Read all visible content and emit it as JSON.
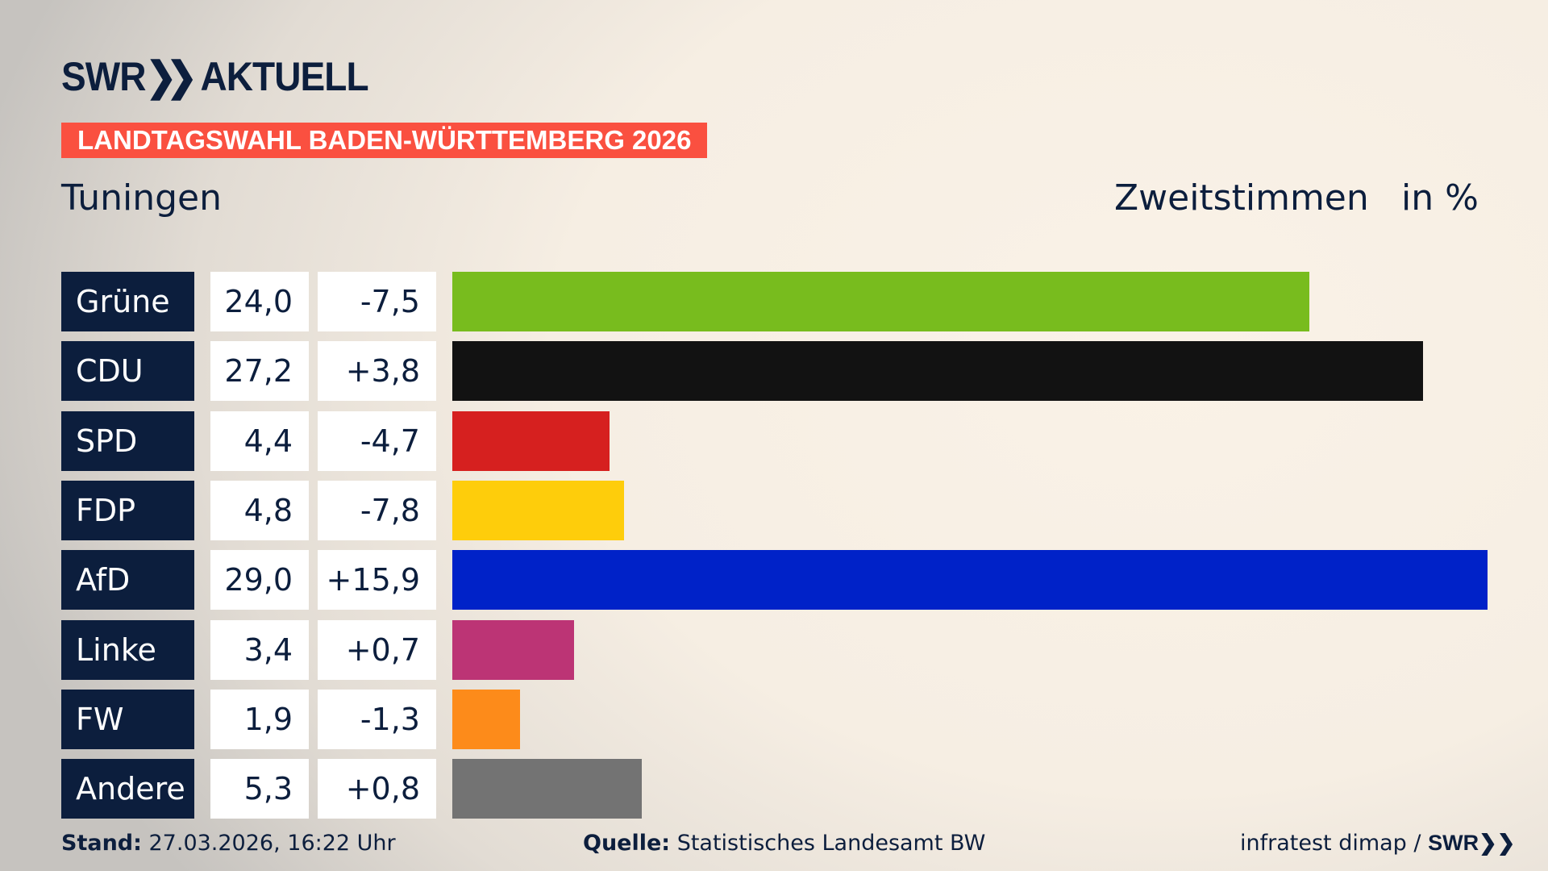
{
  "header": {
    "logo": "SWR AKTUELL",
    "logo_arrows": "❯❯",
    "logo_word": "AKTUELL",
    "logo_swr": "SWR",
    "banner": "LANDTAGSWAHL BADEN-WÜRTTEMBERG 2026",
    "banner_color": "#fa5040",
    "place": "Tuningen",
    "measure": "Zweitstimmen",
    "unit": "in %"
  },
  "chart_data": {
    "type": "bar",
    "orientation": "horizontal",
    "xlim": [
      0,
      29.0
    ],
    "grid": false,
    "categories": [
      "Grüne",
      "CDU",
      "SPD",
      "FDP",
      "AfD",
      "Linke",
      "FW",
      "Andere"
    ],
    "values": [
      24.0,
      27.2,
      4.4,
      4.8,
      29.0,
      3.4,
      1.9,
      5.3
    ],
    "value_labels": [
      "24,0",
      "27,2",
      "4,4",
      "4,8",
      "29,0",
      "3,4",
      "1,9",
      "5,3"
    ],
    "change": [
      -7.5,
      3.8,
      -4.7,
      -7.8,
      15.9,
      0.7,
      -1.3,
      0.8
    ],
    "change_labels": [
      "-7,5",
      "+3,8",
      "-4,7",
      "-7,8",
      "+15,9",
      "+0,7",
      "-1,3",
      "+0,8"
    ],
    "colors": [
      "#78bc1e",
      "#121212",
      "#d6201f",
      "#fecd0b",
      "#0022c8",
      "#bc3475",
      "#fd8b1a",
      "#737373"
    ]
  },
  "footer": {
    "stand_label": "Stand:",
    "stand_value": " 27.03.2026, 16:22 Uhr",
    "source_label": "Quelle:",
    "source_value": " Statistisches Landesamt BW",
    "credit": "infratest dimap / ",
    "credit_logo": "SWR❯❯"
  }
}
